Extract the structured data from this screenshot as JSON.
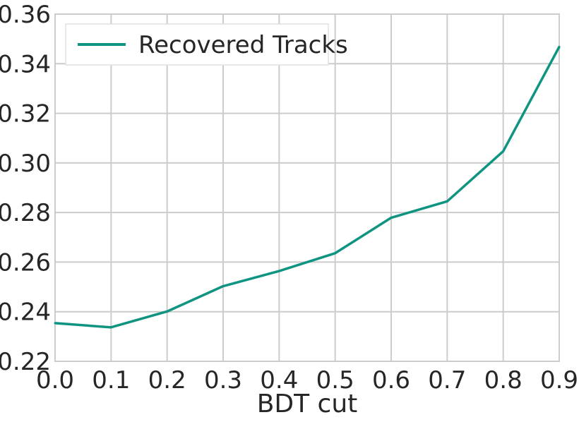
{
  "chart_data": {
    "type": "line",
    "xlabel": "BDT cut",
    "ylabel": "",
    "xlim": [
      0.0,
      0.9
    ],
    "ylim": [
      0.22,
      0.36
    ],
    "xticks": [
      "0.0",
      "0.1",
      "0.2",
      "0.3",
      "0.4",
      "0.5",
      "0.6",
      "0.7",
      "0.8",
      "0.9"
    ],
    "yticks": [
      "0.22",
      "0.24",
      "0.26",
      "0.28",
      "0.30",
      "0.32",
      "0.34",
      "0.36"
    ],
    "grid": true,
    "legend_position": "top-left",
    "series": [
      {
        "name": "Recovered Tracks",
        "color": "#0f9482",
        "x": [
          0.0,
          0.1,
          0.2,
          0.3,
          0.4,
          0.5,
          0.6,
          0.7,
          0.8,
          0.9
        ],
        "y": [
          0.2354,
          0.2337,
          0.2401,
          0.2503,
          0.2564,
          0.2636,
          0.2779,
          0.2845,
          0.3047,
          0.3468
        ]
      }
    ]
  }
}
